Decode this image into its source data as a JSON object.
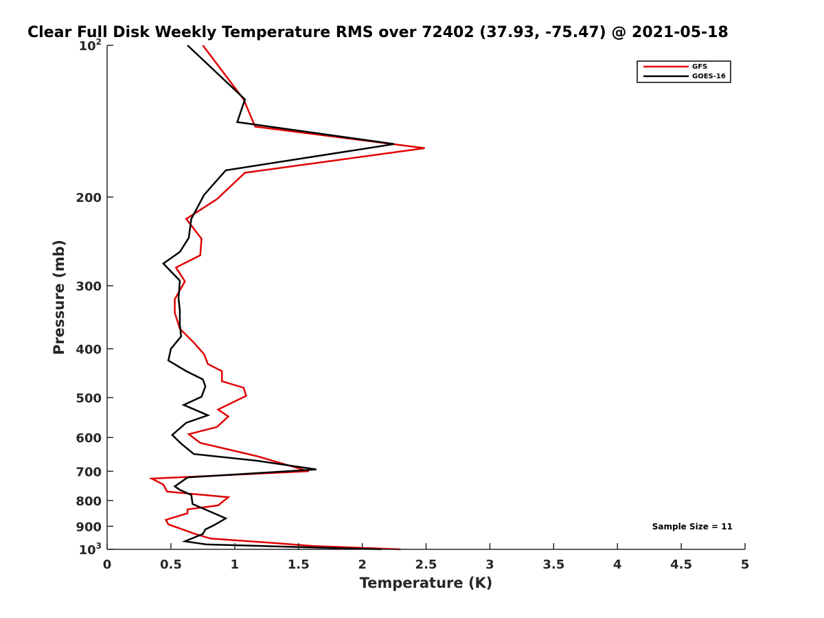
{
  "chart_data": {
    "type": "line",
    "title": "Clear Full Disk Weekly Temperature RMS over 72402 (37.93, -75.47) @ 2021-05-18",
    "xlabel": "Temperature (K)",
    "ylabel": "Pressure (mb)",
    "xlim": [
      0,
      5
    ],
    "ylim": [
      100,
      1000
    ],
    "y_scale": "log",
    "y_reversed": true,
    "grid": false,
    "legend_position": "top-right",
    "x_ticks": [
      "0",
      "0.5",
      "1",
      "1.5",
      "2",
      "2.5",
      "3",
      "3.5",
      "4",
      "4.5",
      "5"
    ],
    "y_ticks": [
      {
        "value": 100,
        "label": "10",
        "sup": "2"
      },
      {
        "value": 200,
        "label": "200"
      },
      {
        "value": 300,
        "label": "300"
      },
      {
        "value": 400,
        "label": "400"
      },
      {
        "value": 500,
        "label": "500"
      },
      {
        "value": 600,
        "label": "600"
      },
      {
        "value": 700,
        "label": "700"
      },
      {
        "value": 800,
        "label": "800"
      },
      {
        "value": 900,
        "label": "900"
      },
      {
        "value": 1000,
        "label": "10",
        "sup": "3"
      }
    ],
    "annotation": "Sample Size = 11",
    "series": [
      {
        "name": "GFS",
        "color": "#e00000",
        "x": [
          0.75,
          1.07,
          1.16,
          2.49,
          1.08,
          0.86,
          0.62,
          0.74,
          0.73,
          0.54,
          0.61,
          0.53,
          0.53,
          0.57,
          0.68,
          0.76,
          0.79,
          0.9,
          0.9,
          1.07,
          1.09,
          0.87,
          0.95,
          0.86,
          0.64,
          0.73,
          1.17,
          1.58,
          0.35,
          0.44,
          0.47,
          0.95,
          0.87,
          0.63,
          0.63,
          0.46,
          0.48,
          0.68,
          0.81,
          1.27,
          1.62,
          2.3
        ],
        "y": [
          100,
          128,
          145,
          160,
          179,
          202,
          221,
          242,
          261,
          276,
          294,
          319,
          339,
          365,
          389,
          410,
          429,
          443,
          464,
          478,
          496,
          528,
          545,
          572,
          591,
          615,
          653,
          700,
          724,
          744,
          768,
          788,
          818,
          833,
          848,
          874,
          892,
          930,
          952,
          970,
          985,
          1000
        ]
      },
      {
        "name": "GOES-16",
        "color": "#000000",
        "x": [
          0.63,
          1.08,
          1.02,
          2.25,
          0.93,
          0.76,
          0.66,
          0.64,
          0.57,
          0.44,
          0.57,
          0.56,
          0.57,
          0.57,
          0.58,
          0.5,
          0.48,
          0.62,
          0.75,
          0.77,
          0.74,
          0.6,
          0.79,
          0.62,
          0.51,
          0.58,
          0.68,
          1.17,
          1.64,
          0.63,
          0.53,
          0.57,
          0.66,
          0.67,
          0.93,
          0.84,
          0.77,
          0.75,
          0.61,
          0.78,
          2.15
        ],
        "y": [
          100,
          128,
          142,
          157,
          177,
          198,
          221,
          241,
          257,
          271,
          293,
          318,
          335,
          359,
          378,
          400,
          422,
          443,
          460,
          475,
          498,
          517,
          542,
          561,
          593,
          617,
          647,
          667,
          694,
          720,
          750,
          762,
          780,
          813,
          868,
          895,
          913,
          932,
          964,
          978,
          1000
        ]
      }
    ]
  }
}
